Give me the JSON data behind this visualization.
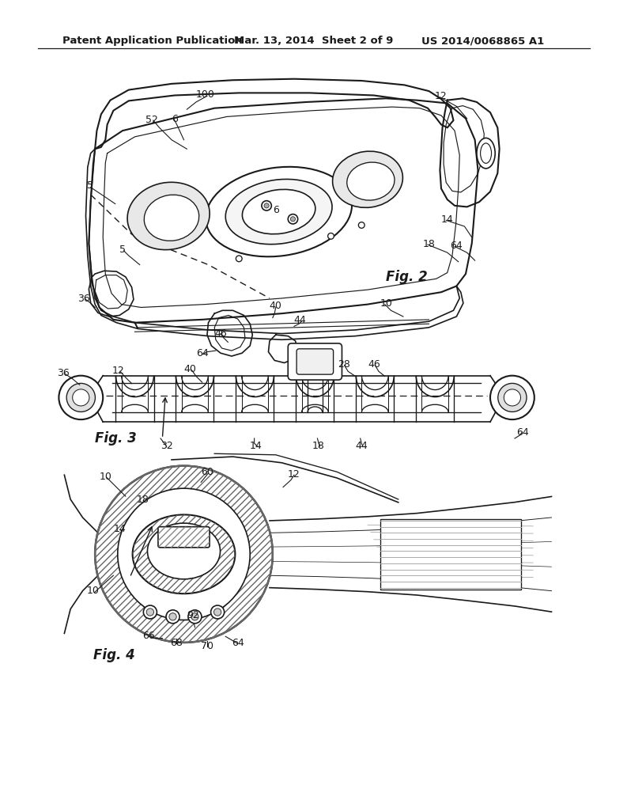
{
  "bg_color": "#ffffff",
  "header_left": "Patent Application Publication",
  "header_center": "Mar. 13, 2014  Sheet 2 of 9",
  "header_right": "US 2014/0068865 A1",
  "line_color": "#1a1a1a",
  "text_color": "#1a1a1a",
  "fig2_nums": [
    [
      335,
      155,
      "100"
    ],
    [
      248,
      197,
      "52"
    ],
    [
      285,
      195,
      "6"
    ],
    [
      450,
      345,
      "6"
    ],
    [
      147,
      305,
      "5"
    ],
    [
      200,
      410,
      "5"
    ],
    [
      137,
      490,
      "36"
    ],
    [
      720,
      158,
      "12"
    ],
    [
      730,
      360,
      "14"
    ],
    [
      700,
      400,
      "18"
    ],
    [
      450,
      502,
      "40"
    ],
    [
      490,
      525,
      "44"
    ],
    [
      360,
      547,
      "46"
    ],
    [
      330,
      580,
      "64"
    ],
    [
      745,
      403,
      "64"
    ],
    [
      630,
      498,
      "10"
    ],
    [
      630,
      455,
      "Fig. 2"
    ]
  ],
  "fig3_nums": [
    [
      103,
      612,
      "36"
    ],
    [
      193,
      608,
      "12"
    ],
    [
      310,
      606,
      "40"
    ],
    [
      562,
      598,
      "28"
    ],
    [
      610,
      598,
      "46"
    ],
    [
      155,
      720,
      "Fig. 3"
    ],
    [
      272,
      732,
      "32"
    ],
    [
      418,
      732,
      "14"
    ],
    [
      520,
      732,
      "18"
    ],
    [
      590,
      732,
      "44"
    ],
    [
      853,
      710,
      "64"
    ]
  ],
  "fig4_nums": [
    [
      172,
      782,
      "10"
    ],
    [
      233,
      820,
      "18"
    ],
    [
      195,
      868,
      "14"
    ],
    [
      152,
      970,
      "10"
    ],
    [
      243,
      1043,
      "66"
    ],
    [
      288,
      1055,
      "68"
    ],
    [
      338,
      1060,
      "70"
    ],
    [
      388,
      1055,
      "64"
    ],
    [
      315,
      1010,
      "92"
    ],
    [
      338,
      775,
      "60"
    ],
    [
      480,
      778,
      "12"
    ],
    [
      152,
      1075,
      "Fig. 4"
    ]
  ]
}
